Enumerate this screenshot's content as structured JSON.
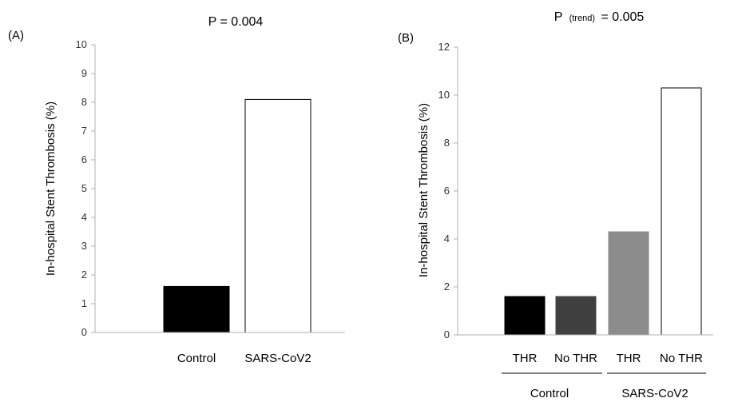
{
  "chart_data": [
    {
      "type": "bar",
      "panel_label": "(A)",
      "title": "P = 0.004",
      "ylabel": "In-hospital Stent Thrombosis (%)",
      "xlabel": "",
      "ylim": [
        0,
        10
      ],
      "yticks": [
        0,
        1,
        2,
        3,
        4,
        5,
        6,
        7,
        8,
        9,
        10
      ],
      "categories": [
        "Control",
        "SARS-CoV2"
      ],
      "values": [
        1.6,
        8.1
      ],
      "bar_colors": [
        "#000000",
        "#ffffff"
      ],
      "grid": false
    },
    {
      "type": "bar",
      "panel_label": "(B)",
      "title": {
        "prefix": "P",
        "subscript": "(trend)",
        "suffix": "= 0.005"
      },
      "ylabel": "In-hospital Stent Thrombosis (%)",
      "xlabel": "",
      "ylim": [
        0,
        12
      ],
      "yticks": [
        0,
        2,
        4,
        6,
        8,
        10,
        12
      ],
      "categories": [
        "THR",
        "No THR",
        "THR",
        "No THR"
      ],
      "groups": [
        {
          "label": "Control",
          "categories": [
            "THR",
            "No THR"
          ]
        },
        {
          "label": "SARS-CoV2",
          "categories": [
            "THR",
            "No THR"
          ]
        }
      ],
      "values": [
        1.6,
        1.6,
        4.3,
        10.3
      ],
      "bar_colors": [
        "#000000",
        "#404040",
        "#8c8c8c",
        "#ffffff"
      ],
      "grid": false
    }
  ]
}
